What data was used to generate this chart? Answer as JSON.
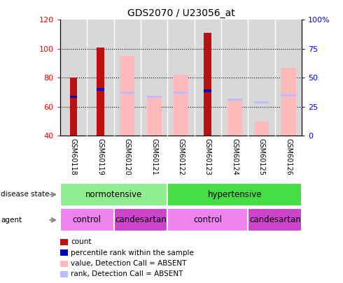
{
  "title": "GDS2070 / U23056_at",
  "samples": [
    "GSM60118",
    "GSM60119",
    "GSM60120",
    "GSM60121",
    "GSM60122",
    "GSM60123",
    "GSM60124",
    "GSM60125",
    "GSM60126"
  ],
  "count_values": [
    80,
    101,
    0,
    0,
    0,
    111,
    0,
    0,
    0
  ],
  "percentile_rank": [
    67,
    72,
    0,
    0,
    0,
    71,
    0,
    0,
    0
  ],
  "value_absent": [
    0,
    0,
    95,
    66,
    82,
    0,
    65,
    50,
    87
  ],
  "rank_absent": [
    0,
    0,
    70,
    67,
    70,
    0,
    65,
    63,
    68
  ],
  "ylim_left": [
    40,
    120
  ],
  "ylim_right": [
    0,
    100
  ],
  "yticks_left": [
    40,
    60,
    80,
    100,
    120
  ],
  "yticks_right": [
    0,
    25,
    50,
    75,
    100
  ],
  "yticklabels_right": [
    "0",
    "25",
    "50",
    "75",
    "100%"
  ],
  "disease_state": [
    {
      "label": "normotensive",
      "span": [
        0,
        4
      ],
      "color": "#90ee90"
    },
    {
      "label": "hypertensive",
      "span": [
        4,
        9
      ],
      "color": "#44dd44"
    }
  ],
  "agent": [
    {
      "label": "control",
      "span": [
        0,
        2
      ],
      "color": "#ee82ee"
    },
    {
      "label": "candesartan",
      "span": [
        2,
        4
      ],
      "color": "#cc44cc"
    },
    {
      "label": "control",
      "span": [
        4,
        7
      ],
      "color": "#ee82ee"
    },
    {
      "label": "candesartan",
      "span": [
        7,
        9
      ],
      "color": "#cc44cc"
    }
  ],
  "count_color": "#bb1111",
  "percentile_color": "#0000bb",
  "value_absent_color": "#ffbbbb",
  "rank_absent_color": "#bbbbff",
  "legend_items": [
    {
      "label": "count",
      "color": "#bb1111"
    },
    {
      "label": "percentile rank within the sample",
      "color": "#0000bb"
    },
    {
      "label": "value, Detection Call = ABSENT",
      "color": "#ffbbbb"
    },
    {
      "label": "rank, Detection Call = ABSENT",
      "color": "#bbbbff"
    }
  ],
  "bar_bottom": 40,
  "chart_bg": "#d8d8d8",
  "label_row_bg": "#c8c8c8"
}
